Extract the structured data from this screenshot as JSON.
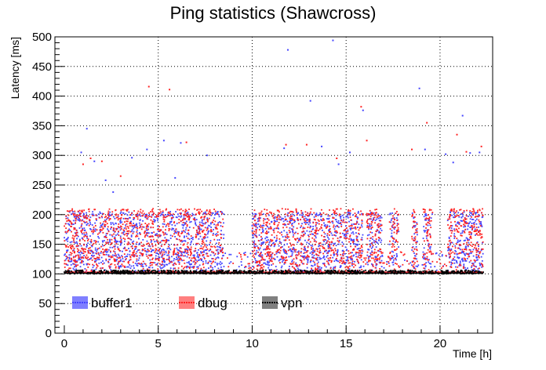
{
  "chart_data": {
    "type": "scatter",
    "title": "Ping statistics (Shawcross)",
    "xlabel": "Time [h]",
    "ylabel": "Latency [ms]",
    "xlim": [
      -0.5,
      22.8
    ],
    "ylim": [
      0,
      500
    ],
    "xticks": [
      0,
      5,
      10,
      15,
      20
    ],
    "yticks": [
      0,
      50,
      100,
      150,
      200,
      250,
      300,
      350,
      400,
      450,
      500
    ],
    "grid": true,
    "legend_placement": "bottom-left",
    "series": [
      {
        "name": "buffer1",
        "color": "#4444ff",
        "baseline": 102,
        "dense_band": [
          110,
          205
        ],
        "outliers": [
          [
            0.9,
            305
          ],
          [
            1.2,
            345
          ],
          [
            1.6,
            290
          ],
          [
            2.2,
            258
          ],
          [
            2.6,
            238
          ],
          [
            3.6,
            296
          ],
          [
            4.4,
            310
          ],
          [
            5.3,
            325
          ],
          [
            5.9,
            262
          ],
          [
            6.2,
            321
          ],
          [
            7.6,
            300
          ],
          [
            11.7,
            312
          ],
          [
            11.9,
            478
          ],
          [
            13.1,
            392
          ],
          [
            13.7,
            315
          ],
          [
            14.3,
            494
          ],
          [
            14.6,
            285
          ],
          [
            15.2,
            305
          ],
          [
            15.9,
            376
          ],
          [
            18.9,
            413
          ],
          [
            19.2,
            310
          ],
          [
            20.3,
            302
          ],
          [
            20.7,
            288
          ],
          [
            21.2,
            367
          ],
          [
            21.6,
            304
          ],
          [
            22.1,
            305
          ]
        ]
      },
      {
        "name": "dbug",
        "color": "#ff2222",
        "baseline": 103,
        "dense_band": [
          115,
          210
        ],
        "outliers": [
          [
            1.0,
            285
          ],
          [
            1.4,
            295
          ],
          [
            2.0,
            290
          ],
          [
            3.0,
            265
          ],
          [
            4.5,
            416
          ],
          [
            4.7,
            205
          ],
          [
            5.6,
            411
          ],
          [
            6.5,
            322
          ],
          [
            11.8,
            318
          ],
          [
            12.9,
            318
          ],
          [
            14.5,
            295
          ],
          [
            15.8,
            382
          ],
          [
            16.1,
            325
          ],
          [
            18.5,
            310
          ],
          [
            19.3,
            355
          ],
          [
            20.9,
            335
          ],
          [
            21.4,
            306
          ],
          [
            22.2,
            315
          ]
        ]
      },
      {
        "name": "vpn",
        "color": "#000000",
        "baseline": 101,
        "dense_band": [
          100,
          106
        ],
        "outliers": []
      }
    ],
    "gaps_hours": [
      [
        8.5,
        10.0
      ],
      [
        15.9,
        16.1
      ],
      [
        16.9,
        17.3
      ],
      [
        17.8,
        18.5
      ],
      [
        18.8,
        19.1
      ],
      [
        19.6,
        20.4
      ]
    ]
  }
}
